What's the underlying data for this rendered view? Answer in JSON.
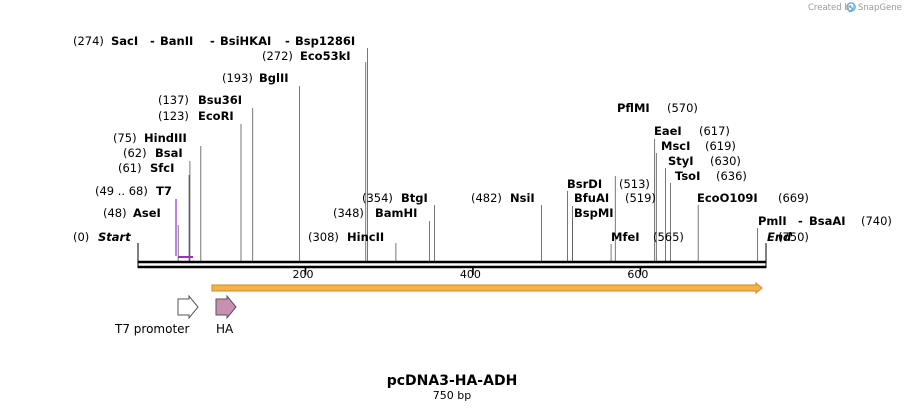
{
  "credit": {
    "prefix": "Created by",
    "brand": "SnapGene"
  },
  "plasmid": {
    "name": "pcDNA3-HA-ADH",
    "length_label": "750 bp",
    "length": 750
  },
  "sites": [
    {
      "name": "Start",
      "pos_label": "(0)",
      "pos": 0,
      "italic": true,
      "color": "#000000"
    },
    {
      "name": "AseI",
      "pos_label": "(48)",
      "pos": 48
    },
    {
      "name": "T7",
      "pos_label": "(49 .. 68)",
      "pos": 58,
      "color": "#9b30c6",
      "primer": true
    },
    {
      "name": "SfcI",
      "pos_label": "(61)",
      "pos": 61
    },
    {
      "name": "BsaI",
      "pos_label": "(62)",
      "pos": 62
    },
    {
      "name": "HindIII",
      "pos_label": "(75)",
      "pos": 75
    },
    {
      "name": "EcoRI",
      "pos_label": "(123)",
      "pos": 123
    },
    {
      "name": "Bsu36I",
      "pos_label": "(137)",
      "pos": 137
    },
    {
      "name": "BglII",
      "pos_label": "(193)",
      "pos": 193
    },
    {
      "name": "Eco53kI",
      "pos_label": "(272)",
      "pos": 272
    },
    {
      "name": "SacI - BanII - BsiHKAI - Bsp1286I",
      "pos_label": "(274)",
      "pos": 274,
      "multi": [
        "SacI",
        "BanII",
        "BsiHKAI",
        "Bsp1286I"
      ]
    },
    {
      "name": "HincII",
      "pos_label": "(308)",
      "pos": 308
    },
    {
      "name": "BamHI",
      "pos_label": "(348)",
      "pos": 348
    },
    {
      "name": "BtgI",
      "pos_label": "(354)",
      "pos": 354
    },
    {
      "name": "NsiI",
      "pos_label": "(482)",
      "pos": 482
    },
    {
      "name": "BsrDI",
      "pos_label": "(513)",
      "pos": 513
    },
    {
      "name": "BfuAI",
      "pos_label": "(519)",
      "pos": 519
    },
    {
      "name": "BspMI",
      "pos_label": "",
      "pos": 519
    },
    {
      "name": "MfeI",
      "pos_label": "(565)",
      "pos": 565
    },
    {
      "name": "PflMI",
      "pos_label": "(570)",
      "pos": 570
    },
    {
      "name": "EaeI",
      "pos_label": "(617)",
      "pos": 617
    },
    {
      "name": "MscI",
      "pos_label": "(619)",
      "pos": 619
    },
    {
      "name": "StyI",
      "pos_label": "(630)",
      "pos": 630
    },
    {
      "name": "TsoI",
      "pos_label": "(636)",
      "pos": 636
    },
    {
      "name": "EcoO109I",
      "pos_label": "(669)",
      "pos": 669
    },
    {
      "name": "PmlI - BsaAI",
      "pos_label": "(740)",
      "pos": 740,
      "multi": [
        "PmlI",
        "BsaAI"
      ]
    },
    {
      "name": "End",
      "pos_label": "(750)",
      "pos": 750,
      "italic": true
    }
  ],
  "ticks": [
    200,
    400,
    600
  ],
  "features": [
    {
      "name": "T7 promoter",
      "start": 49,
      "end": 68,
      "color": "#ffffff",
      "stroke": "#555555"
    },
    {
      "name": "HA",
      "start": 92,
      "end": 118,
      "color": "#c98fb0",
      "stroke": "#555555"
    },
    {
      "name": "ORF",
      "start": 92,
      "end": 750,
      "color": "#f5b14a",
      "stroke": "#d08a20",
      "label_shown": false
    }
  ],
  "colors": {
    "backbone": "#000000",
    "orf": "#f5b14a",
    "primer": "#9b30c6",
    "ha": "#c98fb0"
  }
}
